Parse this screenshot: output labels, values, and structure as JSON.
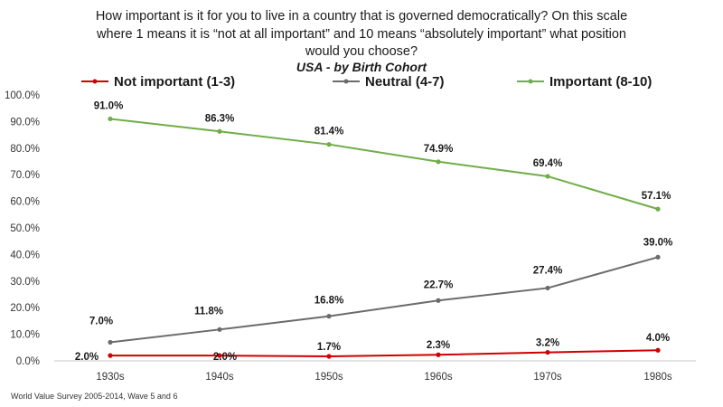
{
  "chart_data": {
    "type": "line",
    "title_lines": [
      "How important is it for you to live in a country that is governed democratically? On this scale",
      "where 1 means it is “not at all important” and 10 means “absolutely important” what position",
      "would you choose?"
    ],
    "subtitle": "USA - by Birth Cohort",
    "categories": [
      "1930s",
      "1940s",
      "1950s",
      "1960s",
      "1970s",
      "1980s"
    ],
    "y_ticks": [
      "0.0%",
      "10.0%",
      "20.0%",
      "30.0%",
      "40.0%",
      "50.0%",
      "60.0%",
      "70.0%",
      "80.0%",
      "90.0%",
      "100.0%"
    ],
    "ylim": [
      0,
      100
    ],
    "grid": false,
    "legend_position": "top",
    "series": [
      {
        "name": "Not important (1-3)",
        "color": "#d00000",
        "values": [
          2.0,
          2.0,
          1.7,
          2.3,
          3.2,
          4.0
        ],
        "labels": [
          "2.0%",
          "2.0%",
          "1.7%",
          "2.3%",
          "3.2%",
          "4.0%"
        ]
      },
      {
        "name": "Neutral (4-7)",
        "color": "#6b6b6b",
        "values": [
          7.0,
          11.8,
          16.8,
          22.7,
          27.4,
          39.0
        ],
        "labels": [
          "7.0%",
          "11.8%",
          "16.8%",
          "22.7%",
          "27.4%",
          "39.0%"
        ]
      },
      {
        "name": "Important (8-10)",
        "color": "#70ad47",
        "values": [
          91.0,
          86.3,
          81.4,
          74.9,
          69.4,
          57.1
        ],
        "labels": [
          "91.0%",
          "86.3%",
          "81.4%",
          "74.9%",
          "69.4%",
          "57.1%"
        ]
      }
    ],
    "source": "World Value Survey 2005-2014,  Wave 5 and 6"
  }
}
